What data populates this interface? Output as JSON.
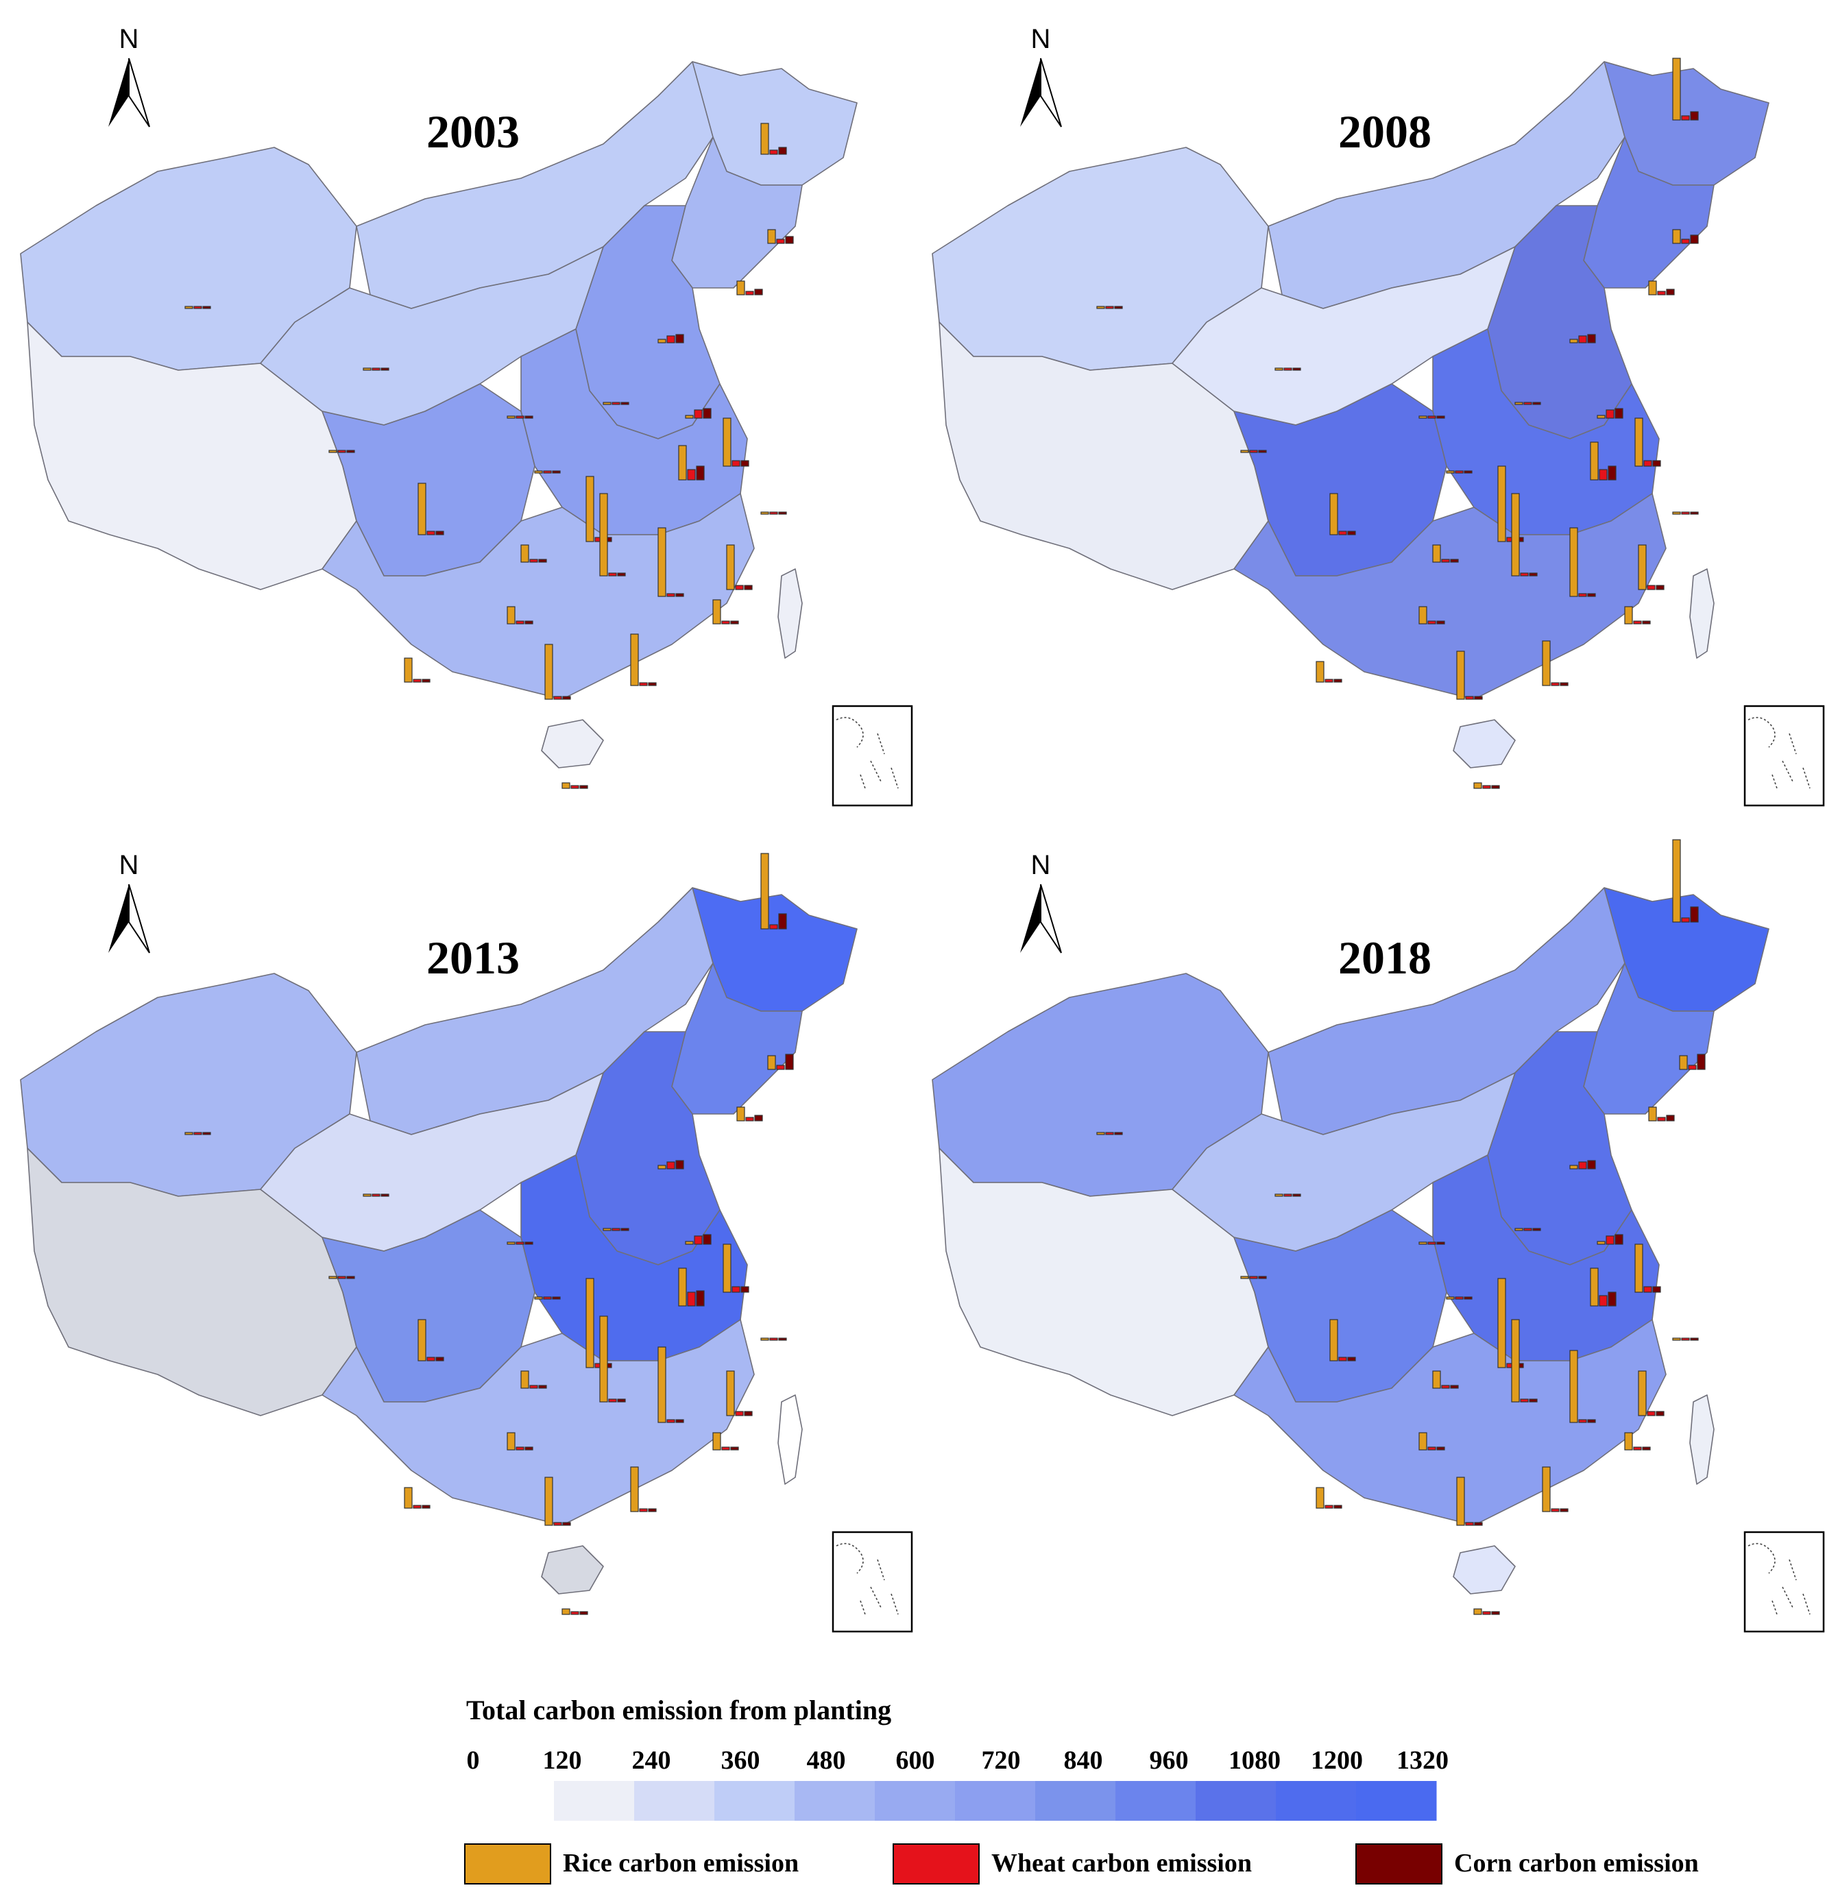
{
  "maps": [
    {
      "year": "2003",
      "fills": [
        "#bfcdf7",
        "#bfcdf7",
        "#edeff7",
        "#bfcdf7",
        "#a8b8f3",
        "#8c9ff0",
        "#bfcdf7",
        "#8c9ff0",
        "#8c9ff0",
        "#a8b8f3",
        "#edeff7",
        "#edeff7"
      ],
      "bars": [
        [
          1110,
          205,
          45,
          6,
          10
        ],
        [
          1120,
          335,
          20,
          6,
          10
        ],
        [
          1075,
          410,
          20,
          5,
          8
        ],
        [
          960,
          480,
          5,
          10,
          12
        ],
        [
          1000,
          590,
          4,
          12,
          14
        ],
        [
          1055,
          660,
          70,
          8,
          8
        ],
        [
          990,
          680,
          50,
          15,
          20
        ],
        [
          855,
          770,
          95,
          6,
          6
        ],
        [
          610,
          760,
          75,
          5,
          5
        ],
        [
          875,
          820,
          120,
          4,
          4
        ],
        [
          960,
          850,
          100,
          4,
          4
        ],
        [
          1060,
          840,
          65,
          6,
          6
        ],
        [
          760,
          800,
          25,
          4,
          4
        ],
        [
          740,
          890,
          25,
          4,
          4
        ],
        [
          795,
          1000,
          80,
          4,
          4
        ],
        [
          920,
          980,
          75,
          4,
          4
        ],
        [
          590,
          975,
          35,
          4,
          4
        ],
        [
          1040,
          890,
          35,
          4,
          4
        ],
        [
          820,
          1130,
          8,
          4,
          4
        ],
        [
          270,
          430,
          3,
          3,
          3
        ],
        [
          530,
          520,
          3,
          3,
          3
        ],
        [
          480,
          640,
          3,
          3,
          3
        ],
        [
          740,
          590,
          3,
          3,
          3
        ],
        [
          880,
          570,
          3,
          3,
          3
        ],
        [
          780,
          670,
          3,
          3,
          3
        ],
        [
          1110,
          730,
          3,
          3,
          3
        ]
      ]
    },
    {
      "year": "2008",
      "fills": [
        "#c8d4f8",
        "#b3c2f5",
        "#e9ecf6",
        "#7a8ce8",
        "#6f82e8",
        "#6878e0",
        "#dfe5fa",
        "#5d75eb",
        "#5d72e8",
        "#7a8ce8",
        "#eceff7",
        "#dfe5fa"
      ],
      "bars": [
        [
          1110,
          155,
          90,
          6,
          12
        ],
        [
          1110,
          335,
          20,
          6,
          12
        ],
        [
          1075,
          410,
          20,
          5,
          8
        ],
        [
          960,
          480,
          5,
          10,
          12
        ],
        [
          1000,
          590,
          4,
          12,
          14
        ],
        [
          1055,
          660,
          70,
          8,
          8
        ],
        [
          990,
          680,
          55,
          15,
          20
        ],
        [
          855,
          770,
          110,
          6,
          6
        ],
        [
          610,
          760,
          60,
          5,
          5
        ],
        [
          875,
          820,
          120,
          4,
          4
        ],
        [
          960,
          850,
          100,
          4,
          4
        ],
        [
          1060,
          840,
          65,
          6,
          6
        ],
        [
          760,
          800,
          25,
          4,
          4
        ],
        [
          740,
          890,
          25,
          4,
          4
        ],
        [
          795,
          1000,
          70,
          4,
          4
        ],
        [
          920,
          980,
          65,
          4,
          4
        ],
        [
          590,
          975,
          30,
          4,
          4
        ],
        [
          1040,
          890,
          25,
          4,
          4
        ],
        [
          820,
          1130,
          8,
          4,
          4
        ],
        [
          270,
          430,
          3,
          3,
          3
        ],
        [
          530,
          520,
          3,
          3,
          3
        ],
        [
          480,
          640,
          3,
          3,
          3
        ],
        [
          740,
          590,
          3,
          3,
          3
        ],
        [
          880,
          570,
          3,
          3,
          3
        ],
        [
          780,
          670,
          3,
          3,
          3
        ],
        [
          1110,
          730,
          3,
          3,
          3
        ]
      ]
    },
    {
      "year": "2013",
      "fills": [
        "#a8b8f3",
        "#a8b8f3",
        "#d6d9e2",
        "#4d6cf3",
        "#6b84ed",
        "#5a72ea",
        "#d5dcf7",
        "#4f6cee",
        "#7b93ec",
        "#a8b8f3",
        "#ffffff",
        "#d6d9e2"
      ],
      "bars": [
        [
          1110,
          130,
          110,
          6,
          22
        ],
        [
          1120,
          335,
          20,
          6,
          22
        ],
        [
          1075,
          410,
          20,
          5,
          8
        ],
        [
          960,
          480,
          5,
          10,
          12
        ],
        [
          1000,
          590,
          4,
          12,
          14
        ],
        [
          1055,
          660,
          70,
          8,
          8
        ],
        [
          990,
          680,
          55,
          20,
          22
        ],
        [
          855,
          770,
          130,
          6,
          6
        ],
        [
          610,
          760,
          60,
          5,
          5
        ],
        [
          875,
          820,
          125,
          4,
          4
        ],
        [
          960,
          850,
          110,
          4,
          4
        ],
        [
          1060,
          840,
          65,
          6,
          6
        ],
        [
          760,
          800,
          25,
          4,
          4
        ],
        [
          740,
          890,
          25,
          4,
          4
        ],
        [
          795,
          1000,
          70,
          4,
          4
        ],
        [
          920,
          980,
          65,
          4,
          4
        ],
        [
          590,
          975,
          30,
          4,
          4
        ],
        [
          1040,
          890,
          25,
          4,
          4
        ],
        [
          820,
          1130,
          8,
          4,
          4
        ],
        [
          270,
          430,
          3,
          3,
          3
        ],
        [
          530,
          520,
          3,
          3,
          3
        ],
        [
          480,
          640,
          3,
          3,
          3
        ],
        [
          740,
          590,
          3,
          3,
          3
        ],
        [
          880,
          570,
          3,
          3,
          3
        ],
        [
          780,
          670,
          3,
          3,
          3
        ],
        [
          1110,
          730,
          3,
          3,
          3
        ]
      ]
    },
    {
      "year": "2018",
      "fills": [
        "#8c9ff0",
        "#8c9ff0",
        "#eceff7",
        "#4a6af0",
        "#6b84ed",
        "#5a72ea",
        "#b3c2f5",
        "#5a72ea",
        "#6b84ed",
        "#8c9ff0",
        "#eceff7",
        "#dfe5fa"
      ],
      "bars": [
        [
          1110,
          120,
          120,
          6,
          22
        ],
        [
          1120,
          335,
          20,
          6,
          22
        ],
        [
          1075,
          410,
          20,
          5,
          8
        ],
        [
          960,
          480,
          5,
          10,
          12
        ],
        [
          1000,
          590,
          4,
          12,
          14
        ],
        [
          1055,
          660,
          70,
          8,
          8
        ],
        [
          990,
          680,
          55,
          15,
          20
        ],
        [
          855,
          770,
          130,
          6,
          6
        ],
        [
          610,
          760,
          60,
          5,
          5
        ],
        [
          875,
          820,
          120,
          4,
          4
        ],
        [
          960,
          850,
          105,
          4,
          4
        ],
        [
          1060,
          840,
          65,
          6,
          6
        ],
        [
          760,
          800,
          25,
          4,
          4
        ],
        [
          740,
          890,
          25,
          4,
          4
        ],
        [
          795,
          1000,
          70,
          4,
          4
        ],
        [
          920,
          980,
          65,
          4,
          4
        ],
        [
          590,
          975,
          30,
          4,
          4
        ],
        [
          1040,
          890,
          25,
          4,
          4
        ],
        [
          820,
          1130,
          8,
          4,
          4
        ],
        [
          270,
          430,
          3,
          3,
          3
        ],
        [
          530,
          520,
          3,
          3,
          3
        ],
        [
          480,
          640,
          3,
          3,
          3
        ],
        [
          740,
          590,
          3,
          3,
          3
        ],
        [
          880,
          570,
          3,
          3,
          3
        ],
        [
          780,
          670,
          3,
          3,
          3
        ],
        [
          1110,
          730,
          3,
          3,
          3
        ]
      ]
    }
  ],
  "north_label": "N",
  "legend": {
    "title": "Total carbon emission from planting",
    "ticks": [
      "0",
      "120",
      "240",
      "360",
      "480",
      "600",
      "720",
      "840",
      "960",
      "1080",
      "1200",
      "1320"
    ],
    "colors": [
      "#edeff7",
      "#d5dcf7",
      "#bfcdf7",
      "#a8b8f3",
      "#98aaf1",
      "#8c9ff0",
      "#7b93ec",
      "#6b84ed",
      "#5a72ea",
      "#4f6cee",
      "#4a6af0"
    ]
  },
  "bar_keys": [
    {
      "label": "Rice carbon emission",
      "color": "#e19d1e"
    },
    {
      "label": "Wheat carbon emission",
      "color": "#e5121b"
    },
    {
      "label": "Corn carbon emission",
      "color": "#780000"
    }
  ]
}
